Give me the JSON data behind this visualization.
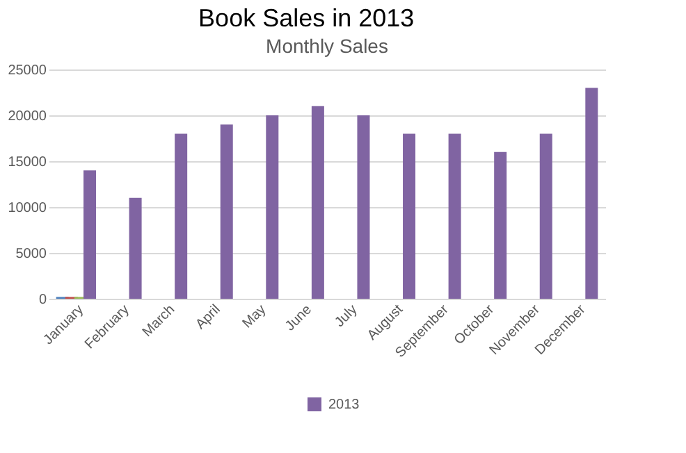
{
  "chart_data": {
    "type": "bar",
    "title": "Book Sales in 2013",
    "subtitle": "Monthly Sales",
    "categories": [
      "January",
      "February",
      "March",
      "April",
      "May",
      "June",
      "July",
      "August",
      "September",
      "October",
      "November",
      "December"
    ],
    "series": [
      {
        "color": "#4f81bd",
        "values": [
          200,
          null,
          null,
          null,
          null,
          null,
          null,
          null,
          null,
          null,
          null,
          null
        ]
      },
      {
        "color": "#c0504d",
        "values": [
          200,
          null,
          null,
          null,
          null,
          null,
          null,
          null,
          null,
          null,
          null,
          null
        ]
      },
      {
        "color": "#9bbb59",
        "values": [
          200,
          null,
          null,
          null,
          null,
          null,
          null,
          null,
          null,
          null,
          null,
          null
        ]
      },
      {
        "name": "2013",
        "color": "#8064a2",
        "values": [
          14000,
          11000,
          18000,
          19000,
          20000,
          21000,
          20000,
          18000,
          18000,
          16000,
          18000,
          23000
        ]
      }
    ],
    "ylim": [
      0,
      25000
    ],
    "yticks": [
      0,
      5000,
      10000,
      15000,
      20000,
      25000
    ],
    "grid": "y",
    "legend": "bottom"
  }
}
